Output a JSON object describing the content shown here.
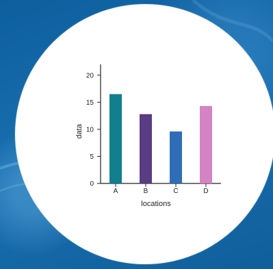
{
  "background": {
    "colors": [
      "#0d5f9d",
      "#196fb0",
      "#0f5f9a"
    ],
    "accent": "#ffffff"
  },
  "chart_data": {
    "type": "bar",
    "categories": [
      "A",
      "B",
      "C",
      "D"
    ],
    "values": [
      16.5,
      12.8,
      9.6,
      14.3
    ],
    "colors": [
      "#127f8f",
      "#5a3c82",
      "#2f6eb7",
      "#d483c5"
    ],
    "xlabel": "locations",
    "ylabel": "data",
    "ylim": [
      0,
      22
    ],
    "yticks": [
      0,
      5,
      10,
      15,
      20
    ],
    "grid": false
  }
}
